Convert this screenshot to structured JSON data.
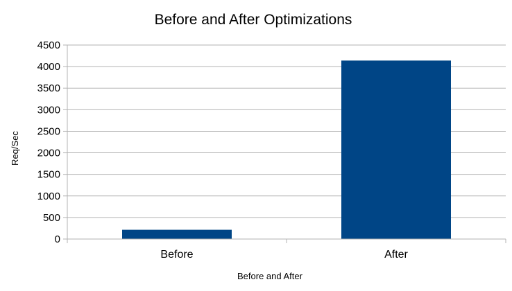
{
  "chart_data": {
    "type": "bar",
    "title": "Before and After Optimizations",
    "xlabel": "Before and After",
    "ylabel": "Req/Sec",
    "categories": [
      "Before",
      "After"
    ],
    "values": [
      215,
      4140
    ],
    "ylim": [
      0,
      4500
    ],
    "yticks": [
      0,
      500,
      1000,
      1500,
      2000,
      2500,
      3000,
      3500,
      4000,
      4500
    ],
    "grid": true,
    "legend": "none",
    "bar_color": "#004586"
  }
}
